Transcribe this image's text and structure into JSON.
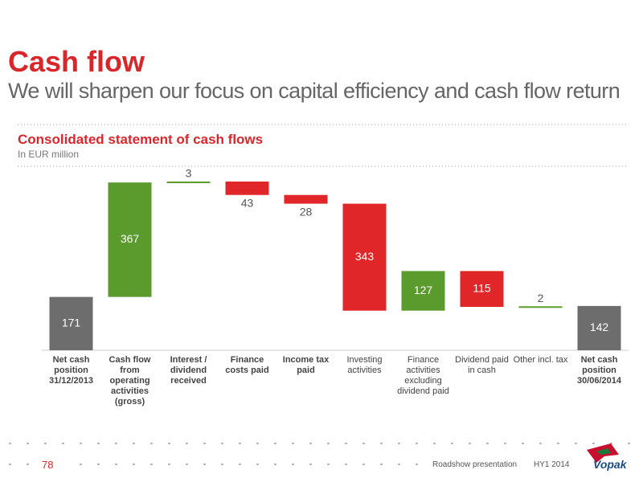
{
  "header": {
    "title": "Cash flow",
    "subtitle": "We will sharpen our focus on capital efficiency and cash flow return"
  },
  "chart_data": {
    "type": "waterfall",
    "title": "Consolidated statement of cash flows",
    "subtitle": "In EUR million",
    "categories": [
      "Net cash position 31/12/2013",
      "Cash flow from operating activities (gross)",
      "Interest / dividend received",
      "Finance costs paid",
      "Income tax paid",
      "Investing activities",
      "Finance activities excluding dividend paid",
      "Dividend paid in cash",
      "Other incl. tax",
      "Net cash position 30/06/2014"
    ],
    "values": [
      171,
      367,
      3,
      -43,
      -28,
      -343,
      127,
      -115,
      2,
      142
    ],
    "value_labels": [
      "171",
      "367",
      "3",
      "43",
      "28",
      "343",
      "127",
      "115",
      "2",
      "142"
    ],
    "totals": [
      true,
      false,
      false,
      false,
      false,
      false,
      false,
      false,
      false,
      true
    ],
    "label_bold": [
      true,
      true,
      true,
      true,
      true,
      false,
      false,
      false,
      false,
      true
    ],
    "colors": {
      "total": "#6d6d6d",
      "increase": "#5b9a2c",
      "decrease": "#e02628"
    }
  },
  "footer": {
    "page": "78",
    "text": "Roadshow presentation",
    "period": "HY1 2014",
    "logo": "Vopak"
  }
}
